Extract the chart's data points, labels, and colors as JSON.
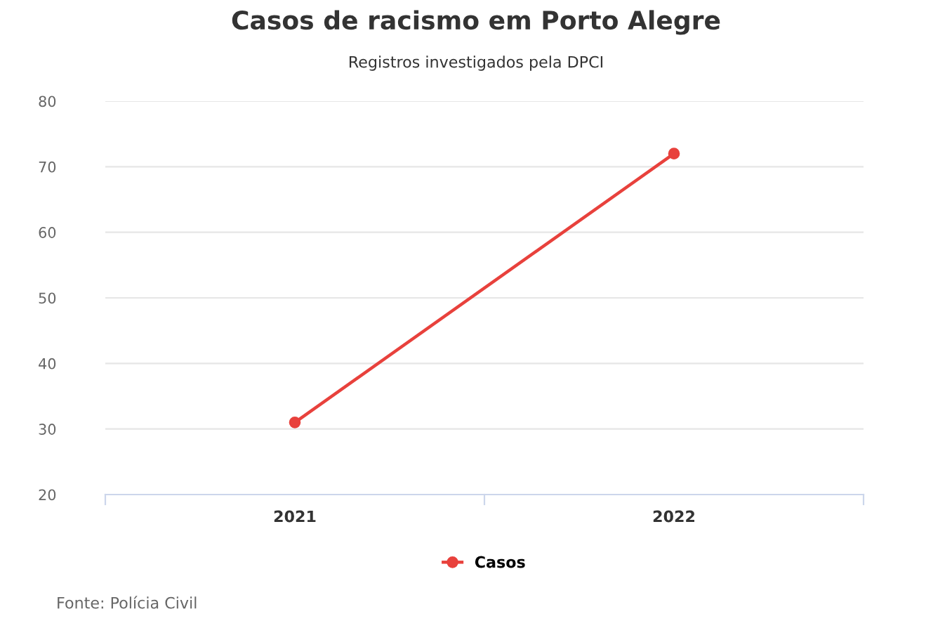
{
  "chart_data": {
    "type": "line",
    "title": "Casos de racismo em Porto Alegre",
    "subtitle": "Registros investigados pela DPCI",
    "categories": [
      "2021",
      "2022"
    ],
    "series": [
      {
        "name": "Casos",
        "color": "#e8413c",
        "values": [
          31,
          72
        ]
      }
    ],
    "ylim": [
      20,
      80
    ],
    "yticks": [
      20,
      30,
      40,
      50,
      60,
      70,
      80
    ],
    "grid": "y",
    "legend": "bottom",
    "marker": "circle",
    "annotations": [
      "Fonte: Polícia Civil"
    ]
  }
}
